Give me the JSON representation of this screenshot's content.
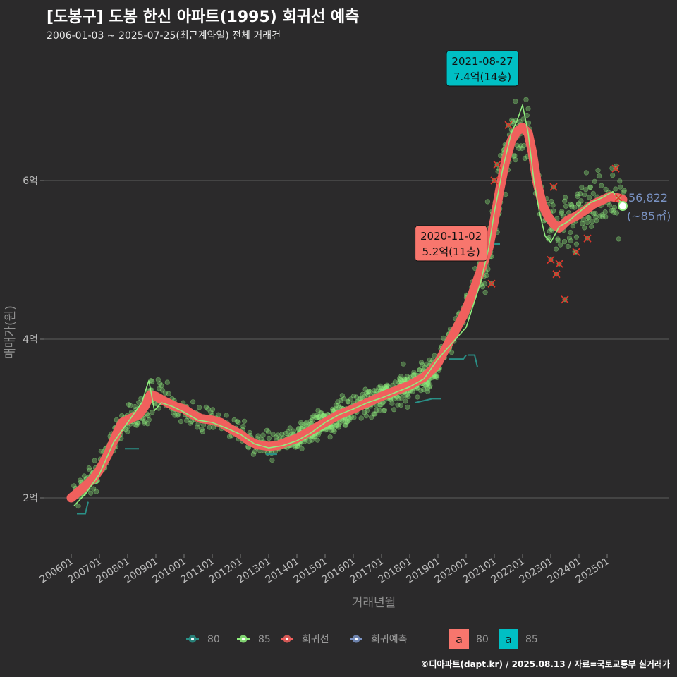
{
  "header": {
    "title": "[도봉구] 도봉 한신 아파트(1995) 회귀선 예측",
    "subtitle": "2006-01-03 ~ 2025-07-25(최근계약일) 전체 거래건"
  },
  "caption": "©디아파트(dapt.kr) / 2025.08.13 / 자료=국토교통부 실거래가",
  "colors": {
    "background": "#2b2a2b",
    "grid": "#5e5e5e",
    "area80": "#2a8f86",
    "area85": "#90ee7e",
    "regression": "#f0605d",
    "prediction": "#7a93c4",
    "label80": "#f8766d",
    "label85": "#00bfc4"
  },
  "chart_data": {
    "type": "scatter",
    "xlabel": "거래년월",
    "ylabel": "매매가(원)",
    "x_ticks": [
      "200601",
      "200701",
      "200801",
      "200901",
      "201001",
      "201101",
      "201201",
      "201301",
      "201401",
      "201501",
      "201601",
      "201701",
      "201801",
      "201901",
      "202001",
      "202101",
      "202201",
      "202301",
      "202401",
      "202501"
    ],
    "y_ticks": [
      {
        "value": 2,
        "label": "2억"
      },
      {
        "value": 4,
        "label": "4억"
      },
      {
        "value": 6,
        "label": "6억"
      }
    ],
    "y_unit": "억원",
    "x_range": [
      2006.0,
      2025.6
    ],
    "y_range": [
      1.35,
      7.55
    ],
    "grid": true,
    "legend_position": "bottom",
    "regression_line": {
      "name": "회귀선",
      "points": [
        [
          2006.0,
          2.0
        ],
        [
          2006.4,
          2.12
        ],
        [
          2006.8,
          2.25
        ],
        [
          2007.0,
          2.35
        ],
        [
          2007.3,
          2.55
        ],
        [
          2007.6,
          2.8
        ],
        [
          2007.8,
          2.95
        ],
        [
          2008.1,
          3.0
        ],
        [
          2008.4,
          3.05
        ],
        [
          2008.6,
          3.15
        ],
        [
          2008.8,
          3.3
        ],
        [
          2009.0,
          3.28
        ],
        [
          2009.3,
          3.22
        ],
        [
          2009.7,
          3.15
        ],
        [
          2010.0,
          3.12
        ],
        [
          2010.3,
          3.05
        ],
        [
          2010.6,
          3.0
        ],
        [
          2011.0,
          2.98
        ],
        [
          2011.3,
          2.95
        ],
        [
          2011.6,
          2.88
        ],
        [
          2012.0,
          2.8
        ],
        [
          2012.3,
          2.72
        ],
        [
          2012.6,
          2.67
        ],
        [
          2013.0,
          2.65
        ],
        [
          2013.3,
          2.66
        ],
        [
          2013.6,
          2.7
        ],
        [
          2014.0,
          2.75
        ],
        [
          2014.5,
          2.85
        ],
        [
          2015.0,
          2.95
        ],
        [
          2015.5,
          3.05
        ],
        [
          2016.0,
          3.12
        ],
        [
          2016.5,
          3.2
        ],
        [
          2017.0,
          3.28
        ],
        [
          2017.5,
          3.35
        ],
        [
          2018.0,
          3.42
        ],
        [
          2018.5,
          3.52
        ],
        [
          2018.8,
          3.62
        ],
        [
          2019.0,
          3.7
        ],
        [
          2019.3,
          3.9
        ],
        [
          2019.6,
          4.1
        ],
        [
          2019.9,
          4.3
        ],
        [
          2020.2,
          4.55
        ],
        [
          2020.5,
          4.85
        ],
        [
          2020.8,
          5.15
        ],
        [
          2021.0,
          5.5
        ],
        [
          2021.2,
          5.9
        ],
        [
          2021.4,
          6.25
        ],
        [
          2021.6,
          6.5
        ],
        [
          2021.8,
          6.62
        ],
        [
          2022.0,
          6.67
        ],
        [
          2022.2,
          6.6
        ],
        [
          2022.35,
          6.35
        ],
        [
          2022.5,
          6.0
        ],
        [
          2022.7,
          5.7
        ],
        [
          2022.9,
          5.55
        ],
        [
          2023.1,
          5.45
        ],
        [
          2023.3,
          5.4
        ],
        [
          2023.6,
          5.5
        ],
        [
          2023.9,
          5.55
        ],
        [
          2024.2,
          5.62
        ],
        [
          2024.5,
          5.7
        ],
        [
          2024.8,
          5.75
        ],
        [
          2025.1,
          5.8
        ],
        [
          2025.4,
          5.78
        ],
        [
          2025.55,
          5.76
        ]
      ]
    },
    "series": [
      {
        "name": "80",
        "color": "#2a8f86"
      },
      {
        "name": "85",
        "color": "#90ee7e"
      }
    ],
    "moving_average_85": [
      [
        2006.1,
        1.9
      ],
      [
        2006.5,
        2.05
      ],
      [
        2007.0,
        2.3
      ],
      [
        2007.5,
        2.7
      ],
      [
        2008.0,
        2.95
      ],
      [
        2008.5,
        3.2
      ],
      [
        2008.75,
        3.48
      ],
      [
        2008.95,
        3.1
      ],
      [
        2009.2,
        3.2
      ],
      [
        2009.6,
        3.15
      ],
      [
        2010.0,
        3.08
      ],
      [
        2010.5,
        2.98
      ],
      [
        2011.0,
        2.95
      ],
      [
        2011.5,
        2.88
      ],
      [
        2012.0,
        2.8
      ],
      [
        2012.5,
        2.68
      ],
      [
        2013.0,
        2.63
      ],
      [
        2013.5,
        2.66
      ],
      [
        2014.0,
        2.72
      ],
      [
        2014.5,
        2.82
      ],
      [
        2015.0,
        2.95
      ],
      [
        2015.5,
        3.05
      ],
      [
        2016.0,
        3.12
      ],
      [
        2016.5,
        3.2
      ],
      [
        2017.0,
        3.26
      ],
      [
        2017.5,
        3.33
      ],
      [
        2018.0,
        3.4
      ],
      [
        2018.5,
        3.5
      ],
      [
        2019.0,
        3.75
      ],
      [
        2019.5,
        3.95
      ],
      [
        2020.0,
        4.15
      ],
      [
        2020.5,
        4.7
      ],
      [
        2020.8,
        5.15
      ],
      [
        2021.0,
        5.6
      ],
      [
        2021.3,
        6.15
      ],
      [
        2021.6,
        6.6
      ],
      [
        2021.8,
        6.75
      ],
      [
        2022.0,
        6.95
      ],
      [
        2022.2,
        6.6
      ],
      [
        2022.4,
        6.0
      ],
      [
        2022.6,
        5.6
      ],
      [
        2022.8,
        5.3
      ],
      [
        2023.0,
        5.22
      ],
      [
        2023.3,
        5.42
      ],
      [
        2023.6,
        5.48
      ],
      [
        2024.0,
        5.6
      ],
      [
        2024.4,
        5.72
      ],
      [
        2024.8,
        5.78
      ],
      [
        2025.2,
        5.86
      ],
      [
        2025.5,
        5.72
      ]
    ],
    "area80_steps": [
      [
        [
          2006.2,
          1.8
        ],
        [
          2006.5,
          1.8
        ],
        [
          2006.6,
          1.95
        ]
      ],
      [
        [
          2007.9,
          2.62
        ],
        [
          2008.4,
          2.62
        ]
      ],
      [
        [
          2012.9,
          2.55
        ],
        [
          2013.3,
          2.55
        ]
      ],
      [
        [
          2018.2,
          3.2
        ],
        [
          2018.8,
          3.25
        ],
        [
          2019.1,
          3.25
        ]
      ],
      [
        [
          2019.4,
          3.75
        ],
        [
          2019.9,
          3.75
        ],
        [
          2020.0,
          3.8
        ]
      ],
      [
        [
          2020.05,
          3.8
        ],
        [
          2020.3,
          3.8
        ],
        [
          2020.4,
          3.65
        ]
      ],
      [
        [
          2020.8,
          5.2
        ],
        [
          2021.2,
          5.2
        ]
      ]
    ],
    "cancelled_points": [
      [
        2020.9,
        4.7
      ],
      [
        2021.0,
        6.0
      ],
      [
        2021.1,
        6.2
      ],
      [
        2021.5,
        6.7
      ],
      [
        2023.0,
        5.0
      ],
      [
        2023.1,
        5.92
      ],
      [
        2023.2,
        4.82
      ],
      [
        2023.3,
        4.95
      ],
      [
        2023.5,
        4.5
      ],
      [
        2023.9,
        5.1
      ],
      [
        2024.3,
        5.27
      ],
      [
        2025.3,
        6.15
      ],
      [
        2025.4,
        5.78
      ]
    ],
    "prediction_point": {
      "x": 2025.55,
      "y": 5.68,
      "label": "56,822",
      "sublabel": "(~85㎡)"
    },
    "annotations": [
      {
        "x": 2020.84,
        "y": 5.2,
        "date": "2020-11-02",
        "price": "5.2억(11층)",
        "series": "80"
      },
      {
        "x": 2021.65,
        "y": 7.4,
        "date": "2021-08-27",
        "price": "7.4억(14층)",
        "series": "85"
      }
    ],
    "legend": {
      "lines": [
        "80",
        "85",
        "회귀선",
        "회귀예측"
      ],
      "labels": [
        "80",
        "85"
      ],
      "label_glyph": "a"
    }
  }
}
